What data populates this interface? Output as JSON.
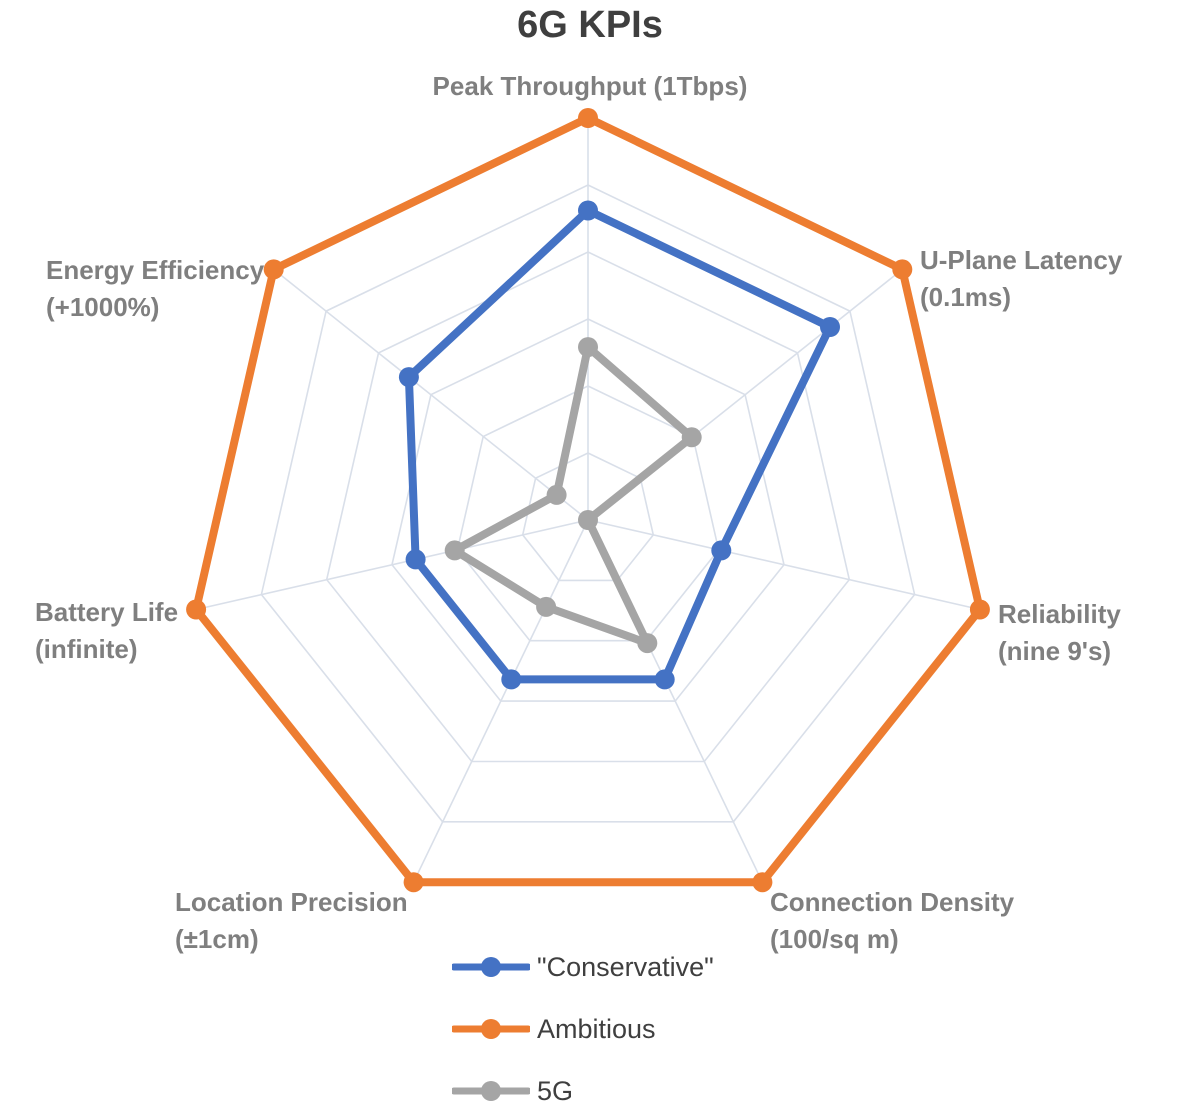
{
  "title": "6G KPIs",
  "colors": {
    "title": "#3F3F3F",
    "axis_label": "#7F7F7F",
    "legend_text": "#3F3F3F",
    "grid": "#D9DFE9",
    "conservative_blue": "#4472C4",
    "ambitious_orange": "#ED7D31",
    "fiveg_gray": "#A5A5A5"
  },
  "chart_data": {
    "type": "radar",
    "title": "6G KPIs",
    "categories": [
      "Peak Throughput (1Tbps)",
      "U-Plane Latency (0.1ms)",
      "Reliability (nine 9's)",
      "Connection Density (100/sq m)",
      "Location Precision (±1cm)",
      "Battery Life (infinite)",
      "Energy Efficiency (+1000%)"
    ],
    "series": [
      {
        "name": "\"Conservative\"",
        "color": "#4472C4",
        "values": [
          77,
          77,
          34,
          44,
          44,
          44,
          57
        ]
      },
      {
        "name": "Ambitious",
        "color": "#ED7D31",
        "values": [
          100,
          100,
          100,
          100,
          100,
          100,
          100
        ]
      },
      {
        "name": "5G",
        "color": "#A5A5A5",
        "values": [
          43,
          33,
          0,
          34,
          24,
          34,
          10
        ]
      }
    ],
    "max": 100,
    "value_scale": "percent of outer ring radius",
    "grid_rings": 6,
    "grid_shape": "heptagon",
    "axis_tick_labels": "none",
    "legend_position": "bottom"
  },
  "axes": [
    {
      "line1": "Peak Throughput (1Tbps)",
      "line2": ""
    },
    {
      "line1": "U-Plane Latency",
      "line2": "(0.1ms)"
    },
    {
      "line1": "Reliability",
      "line2": "(nine 9's)"
    },
    {
      "line1": "Connection Density",
      "line2": "(100/sq m)"
    },
    {
      "line1": "Location Precision",
      "line2": "(±1cm)"
    },
    {
      "line1": "Battery Life",
      "line2": "(infinite)"
    },
    {
      "line1": "Energy Efficiency",
      "line2": "(+1000%)"
    }
  ],
  "legend": {
    "items": [
      {
        "label": "\"Conservative\"",
        "color": "#4472C4"
      },
      {
        "label": "Ambitious",
        "color": "#ED7D31"
      },
      {
        "label": "5G",
        "color": "#A5A5A5"
      }
    ]
  }
}
